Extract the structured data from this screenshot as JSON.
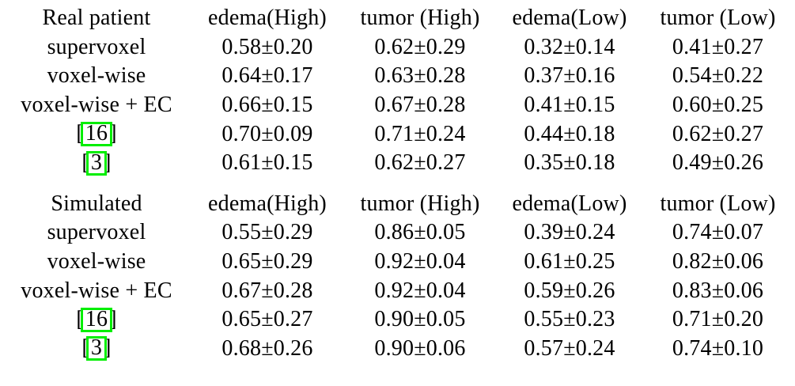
{
  "colors": {
    "background": "#ffffff",
    "text": "#000000",
    "citation_border": "#00ee00"
  },
  "cite_style": {
    "bracket_open": "[",
    "bracket_close": "]"
  },
  "table": {
    "sections": [
      {
        "title": "Real patient",
        "columns": [
          "edema(High)",
          "tumor (High)",
          "edema(Low)",
          "tumor (Low)"
        ],
        "rows": [
          {
            "label": "supervoxel",
            "values": [
              "0.58±0.20",
              "0.62±0.29",
              "0.32±0.14",
              "0.41±0.27"
            ]
          },
          {
            "label": "voxel-wise",
            "values": [
              "0.64±0.17",
              "0.63±0.28",
              "0.37±0.16",
              "0.54±0.22"
            ]
          },
          {
            "label": "voxel-wise + EC",
            "values": [
              "0.66±0.15",
              "0.67±0.28",
              "0.41±0.15",
              "0.60±0.25"
            ]
          },
          {
            "cite": "16",
            "values": [
              "0.70±0.09",
              "0.71±0.24",
              "0.44±0.18",
              "0.62±0.27"
            ]
          },
          {
            "cite": "3",
            "values": [
              "0.61±0.15",
              "0.62±0.27",
              "0.35±0.18",
              "0.49±0.26"
            ]
          }
        ]
      },
      {
        "title": "Simulated",
        "columns": [
          "edema(High)",
          "tumor (High)",
          "edema(Low)",
          "tumor (Low)"
        ],
        "rows": [
          {
            "label": "supervoxel",
            "values": [
              "0.55±0.29",
              "0.86±0.05",
              "0.39±0.24",
              "0.74±0.07"
            ]
          },
          {
            "label": "voxel-wise",
            "values": [
              "0.65±0.29",
              "0.92±0.04",
              "0.61±0.25",
              "0.82±0.06"
            ]
          },
          {
            "label": "voxel-wise + EC",
            "values": [
              "0.67±0.28",
              "0.92±0.04",
              "0.59±0.26",
              "0.83±0.06"
            ]
          },
          {
            "cite": "16",
            "values": [
              "0.65±0.27",
              "0.90±0.05",
              "0.55±0.23",
              "0.71±0.20"
            ]
          },
          {
            "cite": "3",
            "values": [
              "0.68±0.26",
              "0.90±0.06",
              "0.57±0.24",
              "0.74±0.10"
            ]
          }
        ]
      }
    ]
  }
}
